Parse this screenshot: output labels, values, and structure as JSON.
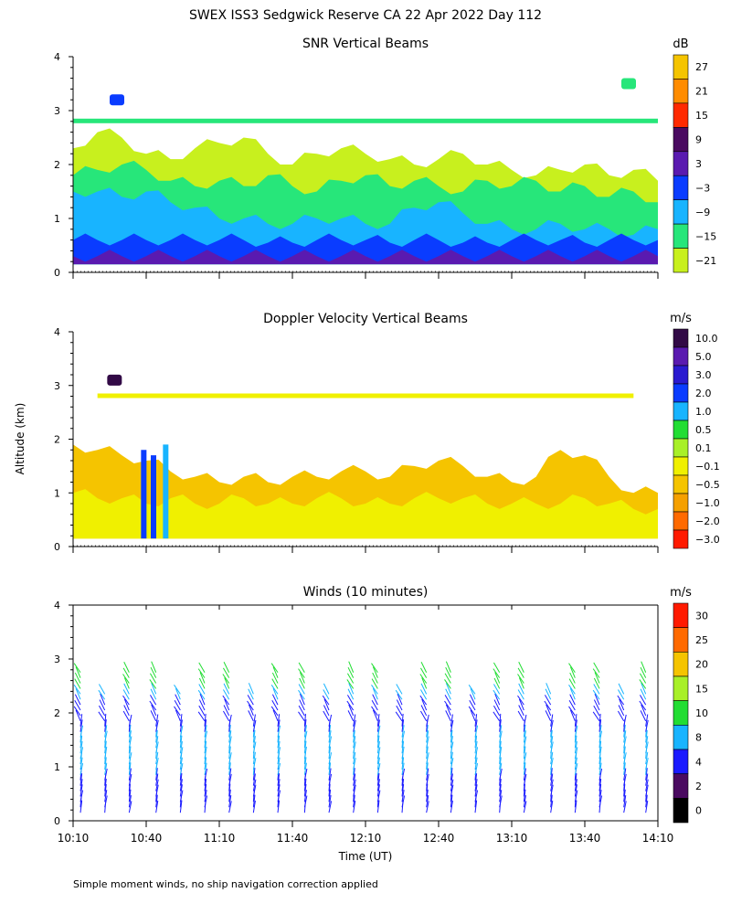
{
  "title": "SWEX ISS3 Sedgwick Reserve CA  22 Apr 2022 Day 112",
  "footnote": "Simple moment winds, no ship navigation correction applied",
  "shared_axes": {
    "ylabel": "Altitude (km)",
    "xlabel": "Time (UT)",
    "ylim": [
      0,
      4
    ],
    "yticks": [
      "0",
      "1",
      "2",
      "3",
      "4"
    ],
    "xlim_minutes_since_1010": [
      0,
      240
    ],
    "xticks": [
      {
        "t": 0,
        "label": "10:10"
      },
      {
        "t": 30,
        "label": "10:40"
      },
      {
        "t": 60,
        "label": "11:10"
      },
      {
        "t": 90,
        "label": "11:40"
      },
      {
        "t": 120,
        "label": "12:10"
      },
      {
        "t": 150,
        "label": "12:40"
      },
      {
        "t": 180,
        "label": "13:10"
      },
      {
        "t": 210,
        "label": "13:40"
      },
      {
        "t": 240,
        "label": "14:10"
      }
    ]
  },
  "chart_data": [
    {
      "type": "heatmap",
      "title": "SNR Vertical Beams",
      "unit": "dB",
      "colorbar_labels": [
        "27",
        "21",
        "15",
        "9",
        "3",
        "−3",
        "−9",
        "−15",
        "−21"
      ],
      "colorbar_colors": [
        "#f5c400",
        "#ff8c00",
        "#ff2a00",
        "#4a0a60",
        "#5a1ab0",
        "#0a3cff",
        "#18b4ff",
        "#27e67a",
        "#c8f01e"
      ],
      "layers": [
        {
          "color": "#c8f01e",
          "top_km": [
            2.3,
            2.6,
            2.5,
            2.2,
            2.1,
            2.3,
            2.4,
            2.5,
            2.2,
            2.0,
            2.2,
            2.3,
            2.2,
            2.1,
            2.0,
            2.1,
            2.2,
            2.0,
            1.9,
            1.8,
            1.9,
            2.0,
            1.8,
            1.9,
            1.7
          ]
        },
        {
          "color": "#27e67a",
          "top_km": [
            1.8,
            1.9,
            2.0,
            1.9,
            1.7,
            1.6,
            1.7,
            1.6,
            1.8,
            1.6,
            1.5,
            1.7,
            1.8,
            1.6,
            1.7,
            1.6,
            1.5,
            1.7,
            1.6,
            1.7,
            1.5,
            1.6,
            1.4,
            1.5,
            1.3
          ]
        },
        {
          "color": "#18b4ff",
          "top_km": [
            1.5,
            1.5,
            1.4,
            1.5,
            1.3,
            1.2,
            1.0,
            1.0,
            0.9,
            0.9,
            1.0,
            1.0,
            0.9,
            0.9,
            1.2,
            1.3,
            1.1,
            0.9,
            0.8,
            0.8,
            0.9,
            0.8,
            0.8,
            0.7,
            0.8
          ]
        },
        {
          "color": "#0a3cff",
          "top_km": [
            0.6,
            0.6,
            0.6,
            0.6,
            0.6,
            0.6,
            0.6,
            0.6,
            0.55,
            0.55,
            0.6,
            0.6,
            0.6,
            0.55,
            0.6,
            0.6,
            0.55,
            0.55,
            0.6,
            0.6,
            0.6,
            0.55,
            0.6,
            0.6,
            0.6
          ]
        },
        {
          "color": "#5a1ab0",
          "top_km": [
            0.3,
            0.3,
            0.3,
            0.3,
            0.3,
            0.3,
            0.3,
            0.3,
            0.3,
            0.3,
            0.3,
            0.3,
            0.3,
            0.3,
            0.3,
            0.3,
            0.3,
            0.3,
            0.3,
            0.3,
            0.3,
            0.3,
            0.3,
            0.3,
            0.3
          ]
        }
      ],
      "features": [
        {
          "kind": "band",
          "altitude_km": 2.8,
          "color": "#27e67a",
          "t_start": 0,
          "t_end": 240
        },
        {
          "kind": "patch",
          "t": 18,
          "altitude_km": 3.2,
          "color": "#0a3cff"
        },
        {
          "kind": "patch",
          "t": 228,
          "altitude_km": 3.5,
          "color": "#27e67a"
        }
      ]
    },
    {
      "type": "heatmap",
      "title": "Doppler Velocity Vertical Beams",
      "unit": "m/s",
      "colorbar_labels": [
        "10.0",
        "5.0",
        "3.0",
        "2.0",
        "1.0",
        "0.5",
        "0.1",
        "−0.1",
        "−0.5",
        "−1.0",
        "−2.0",
        "−3.0"
      ],
      "colorbar_colors": [
        "#320a46",
        "#5a1ab0",
        "#2a1ad0",
        "#0a3cff",
        "#18b4ff",
        "#22dd33",
        "#a8f028",
        "#f0f000",
        "#f5c400",
        "#f5a000",
        "#ff6a00",
        "#ff1a00"
      ],
      "layers": [
        {
          "color": "#f5c400",
          "top_km": [
            1.9,
            1.8,
            1.7,
            1.6,
            1.4,
            1.3,
            1.2,
            1.3,
            1.2,
            1.3,
            1.3,
            1.4,
            1.4,
            1.3,
            1.5,
            1.6,
            1.5,
            1.3,
            1.2,
            1.3,
            1.8,
            1.7,
            1.3,
            1.0,
            1.0
          ]
        },
        {
          "color": "#f0f000",
          "top_km": [
            1.0,
            0.9,
            0.9,
            0.8,
            0.9,
            0.8,
            0.8,
            0.9,
            0.8,
            0.8,
            0.9,
            0.9,
            0.8,
            0.8,
            0.9,
            0.9,
            0.9,
            0.8,
            0.8,
            0.8,
            0.8,
            0.9,
            0.8,
            0.7,
            0.7
          ]
        }
      ],
      "features": [
        {
          "kind": "band",
          "altitude_km": 2.8,
          "color": "#f0f000",
          "t_start": 10,
          "t_end": 230
        },
        {
          "kind": "column",
          "t": 29,
          "top_km": 1.8,
          "color": "#0a3cff"
        },
        {
          "kind": "column",
          "t": 33,
          "top_km": 1.7,
          "color": "#0a3cff"
        },
        {
          "kind": "column",
          "t": 38,
          "top_km": 1.9,
          "color": "#18b4ff"
        },
        {
          "kind": "patch",
          "t": 17,
          "altitude_km": 3.1,
          "color": "#320a46"
        }
      ]
    },
    {
      "type": "wind_barbs",
      "title": "Winds (10 minutes)",
      "unit": "m/s",
      "colorbar_labels": [
        "30",
        "25",
        "20",
        "15",
        "10",
        "8",
        "4",
        "2",
        "0"
      ],
      "colorbar_colors": [
        "#ff1a00",
        "#ff6a00",
        "#f5c400",
        "#a8f028",
        "#22dd33",
        "#18b4ff",
        "#1a1aff",
        "#4a0a60",
        "#000000"
      ],
      "profiles_t": [
        3,
        13,
        23,
        34,
        44,
        54,
        64,
        74,
        84,
        95,
        105,
        115,
        125,
        135,
        145,
        155,
        165,
        175,
        185,
        196,
        206,
        216,
        226,
        235
      ],
      "speed_by_altitude_km": [
        {
          "alt": 0.2,
          "speed": 4
        },
        {
          "alt": 0.6,
          "speed": 6
        },
        {
          "alt": 1.0,
          "speed": 10
        },
        {
          "alt": 1.5,
          "speed": 9
        },
        {
          "alt": 2.0,
          "speed": 5
        },
        {
          "alt": 2.4,
          "speed": 10
        },
        {
          "alt": 2.8,
          "speed": 14
        },
        {
          "alt": 3.0,
          "speed": 18
        }
      ]
    }
  ]
}
